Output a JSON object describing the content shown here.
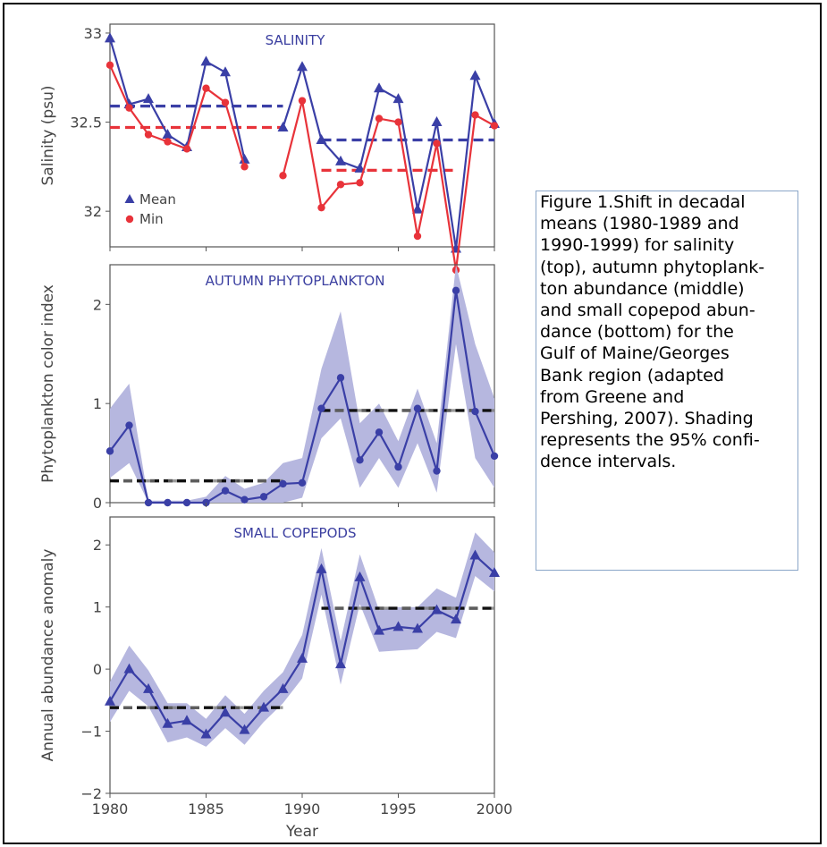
{
  "caption": "Figure 1.Shift in decadal\nmeans (1980-1989 and\n1990-1999) for salinity\n(top), autumn phytoplank-\nton abundance (middle)\nand small copepod abun-\ndance (bottom) for the\nGulf of Maine/Georges\nBank region (adapted\nfrom Greene and\nPershing, 2007).  Shading\nrepresents the 95% confi-\ndence intervals.",
  "xlabel": "Year",
  "colors": {
    "mean": "#3a3fa6",
    "min": "#e8333a",
    "band": "#b6b7df",
    "decadal_dark": "#111111",
    "decadal_gray": "#777777"
  },
  "chart_data": [
    {
      "type": "line",
      "title": "SALINITY",
      "ylabel": "Salinity (psu)",
      "xlim": [
        1980,
        2000
      ],
      "ylim": [
        31.8,
        33.05
      ],
      "yticks": [
        32,
        32.5,
        33
      ],
      "ytick_labels": [
        "32",
        "32.5",
        "33"
      ],
      "legend": {
        "position": "bottom-left",
        "entries": [
          "Mean",
          "Min"
        ]
      },
      "series": [
        {
          "name": "Mean",
          "marker": "triangle",
          "color": "#3a3fa6",
          "x": [
            1980,
            1981,
            1982,
            1983,
            1984,
            1985,
            1986,
            1987,
            1989,
            1990,
            1991,
            1992,
            1993,
            1994,
            1995,
            1996,
            1997,
            1998,
            1999,
            2000
          ],
          "values": [
            32.97,
            32.6,
            32.63,
            32.43,
            32.36,
            32.84,
            32.78,
            32.29,
            32.47,
            32.81,
            32.4,
            32.28,
            32.24,
            32.69,
            32.63,
            32.01,
            32.5,
            31.79,
            32.76,
            32.49
          ]
        },
        {
          "name": "Min",
          "marker": "circle",
          "color": "#e8333a",
          "x": [
            1980,
            1981,
            1982,
            1983,
            1984,
            1985,
            1986,
            1987,
            1989,
            1990,
            1991,
            1992,
            1993,
            1994,
            1995,
            1996,
            1997,
            1998,
            1999,
            2000
          ],
          "values": [
            32.82,
            32.58,
            32.43,
            32.39,
            32.35,
            32.69,
            32.61,
            32.25,
            32.2,
            32.62,
            32.02,
            32.15,
            32.16,
            32.52,
            32.5,
            31.86,
            32.38,
            31.67,
            32.54,
            32.48
          ]
        }
      ],
      "decadal_means": [
        {
          "series": "Mean",
          "x": [
            1980,
            1989
          ],
          "value": 32.59
        },
        {
          "series": "Min",
          "x": [
            1980,
            1989
          ],
          "value": 32.47
        },
        {
          "series": "Mean",
          "x": [
            1991,
            2000
          ],
          "value": 32.4
        },
        {
          "series": "Min",
          "x": [
            1991,
            1998
          ],
          "value": 32.23
        }
      ]
    },
    {
      "type": "line",
      "title": "AUTUMN PHYTOPLANKTON",
      "ylabel": "Phytoplankton color index",
      "xlim": [
        1980,
        2000
      ],
      "ylim": [
        0,
        2.4
      ],
      "yticks": [
        0,
        1,
        2
      ],
      "ytick_labels": [
        "0",
        "1",
        "2"
      ],
      "series": [
        {
          "name": "",
          "marker": "circle",
          "color": "#3a3fa6",
          "x": [
            1980,
            1981,
            1982,
            1983,
            1984,
            1985,
            1986,
            1987,
            1988,
            1989,
            1990,
            1991,
            1992,
            1993,
            1994,
            1995,
            1996,
            1997,
            1998,
            1999,
            2000
          ],
          "values": [
            0.52,
            0.78,
            0.0,
            0.0,
            0.0,
            0.0,
            0.12,
            0.03,
            0.06,
            0.19,
            0.2,
            0.95,
            1.26,
            0.43,
            0.71,
            0.36,
            0.95,
            0.32,
            2.14,
            0.92,
            0.47
          ],
          "ci_low": [
            0.25,
            0.4,
            0.0,
            0.0,
            0.0,
            0.0,
            0.0,
            0.0,
            0.0,
            0.0,
            0.05,
            0.65,
            0.85,
            0.15,
            0.45,
            0.15,
            0.6,
            0.1,
            1.6,
            0.45,
            0.15
          ],
          "ci_high": [
            0.95,
            1.2,
            0.02,
            0.02,
            0.02,
            0.06,
            0.27,
            0.14,
            0.2,
            0.4,
            0.45,
            1.35,
            1.93,
            0.8,
            1.0,
            0.62,
            1.15,
            0.6,
            2.4,
            1.6,
            1.05
          ]
        }
      ],
      "decadal_means": [
        {
          "x": [
            1980,
            1989
          ],
          "value": 0.22
        },
        {
          "x": [
            1991,
            2000
          ],
          "value": 0.93
        }
      ]
    },
    {
      "type": "line",
      "title": "SMALL COPEPODS",
      "ylabel": "Annual abundance anomaly",
      "xlim": [
        1980,
        2000
      ],
      "ylim": [
        -2,
        2.45
      ],
      "yticks": [
        -2,
        -1,
        0,
        1,
        2
      ],
      "ytick_labels": [
        "−2",
        "−1",
        "0",
        "1",
        "2"
      ],
      "xticks": [
        1980,
        1985,
        1990,
        1995,
        2000
      ],
      "xtick_labels": [
        "1980",
        "1985",
        "1990",
        "1995",
        "2000"
      ],
      "series": [
        {
          "name": "",
          "marker": "triangle",
          "color": "#3a3fa6",
          "x": [
            1980,
            1981,
            1982,
            1983,
            1984,
            1985,
            1986,
            1987,
            1988,
            1989,
            1990,
            1991,
            1992,
            1993,
            1994,
            1995,
            1996,
            1997,
            1998,
            1999,
            2000
          ],
          "values": [
            -0.52,
            0.0,
            -0.32,
            -0.88,
            -0.83,
            -1.05,
            -0.7,
            -0.98,
            -0.62,
            -0.32,
            0.17,
            1.61,
            0.08,
            1.48,
            0.62,
            0.68,
            0.65,
            0.95,
            0.8,
            1.83,
            1.55
          ],
          "ci_low": [
            -0.85,
            -0.35,
            -0.6,
            -1.18,
            -1.1,
            -1.25,
            -0.95,
            -1.22,
            -0.85,
            -0.55,
            -0.15,
            1.2,
            -0.25,
            1.05,
            0.28,
            0.3,
            0.32,
            0.6,
            0.5,
            1.5,
            1.25
          ],
          "ci_high": [
            -0.2,
            0.38,
            -0.02,
            -0.55,
            -0.55,
            -0.8,
            -0.42,
            -0.72,
            -0.35,
            -0.05,
            0.55,
            1.95,
            0.45,
            1.85,
            0.95,
            1.0,
            1.0,
            1.3,
            1.15,
            2.2,
            1.88
          ]
        }
      ],
      "decadal_means": [
        {
          "x": [
            1980,
            1989
          ],
          "value": -0.62
        },
        {
          "x": [
            1991,
            2000
          ],
          "value": 0.98
        }
      ]
    }
  ]
}
